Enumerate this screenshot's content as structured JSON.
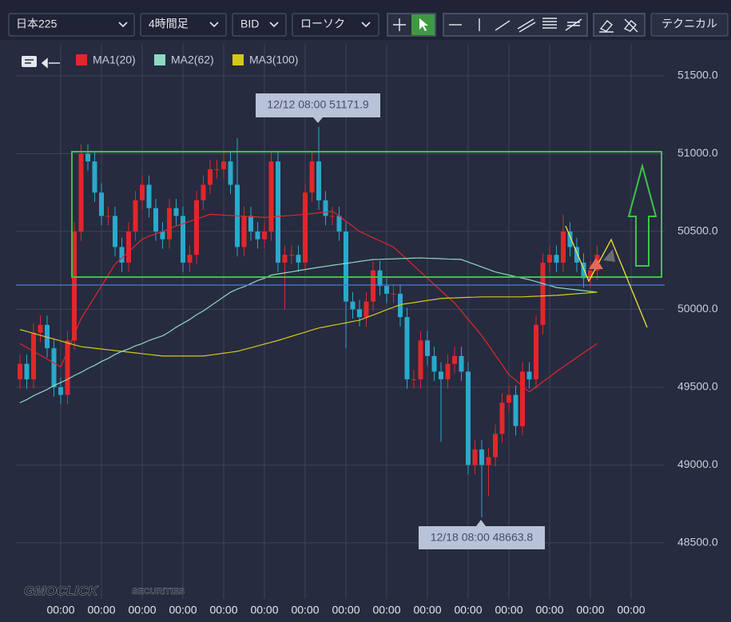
{
  "toolbar": {
    "symbol": "日本225",
    "timeframe": "4時間足",
    "price_type": "BID",
    "chart_style": "ローソク",
    "technical": "テクニカル"
  },
  "chart_data": {
    "type": "candlestick",
    "categories": [
      null,
      null,
      null,
      null,
      null,
      null,
      "00:00",
      null,
      null,
      null,
      null,
      null,
      "00:00",
      null,
      null,
      null,
      null,
      null,
      "00:00",
      null,
      null,
      null,
      null,
      null,
      "00:00",
      null,
      null,
      null,
      null,
      null,
      "00:00",
      null,
      null,
      null,
      null,
      null,
      "00:00",
      null,
      null,
      null,
      null,
      null,
      "00:00",
      null,
      null,
      null,
      null,
      null,
      "00:00",
      null,
      null,
      null,
      null,
      null,
      "00:00",
      null,
      null,
      null,
      null,
      null,
      "00:00",
      null,
      null,
      null,
      null,
      null,
      "00:00",
      null,
      null,
      null,
      null,
      null,
      "00:00",
      null,
      null,
      null,
      null,
      null,
      "00:00",
      null,
      null,
      null,
      null,
      null,
      "00:00",
      null,
      null,
      null,
      null,
      null,
      "00:00"
    ],
    "open": [
      49550,
      49650,
      49550,
      49850,
      49900,
      49750,
      49500,
      49450,
      49800,
      50500,
      51000,
      50950,
      50750,
      50600,
      50600,
      50400,
      50300,
      50500,
      50700,
      50800,
      50650,
      50500,
      50450,
      50650,
      50600,
      50300,
      50350,
      50700,
      50800,
      50900,
      50900,
      50950,
      50800,
      50400,
      50600,
      50500,
      50450,
      50500,
      50950,
      50300,
      50350,
      50350,
      50300,
      50750,
      50950,
      50700,
      50600,
      50600,
      50500,
      50050,
      50000,
      49950,
      50050,
      50250,
      50150,
      50100,
      50100,
      49950,
      49550,
      49550,
      49800,
      49700,
      49600,
      49550,
      49650,
      49700,
      49600,
      49000,
      49100,
      49000,
      49050,
      49200,
      49400,
      49450,
      49250,
      49600,
      49550,
      49900,
      50300,
      50350,
      50300,
      50500,
      50400,
      50300,
      50200,
      50250,
      null,
      null,
      null,
      null,
      null
    ],
    "high": [
      49710,
      49710,
      49910,
      49960,
      49960,
      49810,
      49560,
      49860,
      50560,
      51060,
      51060,
      51010,
      50810,
      50660,
      50660,
      50460,
      50560,
      50760,
      50860,
      50860,
      50710,
      50560,
      50710,
      50710,
      50660,
      50410,
      50760,
      50860,
      50960,
      50960,
      51010,
      51010,
      51100,
      50660,
      50660,
      50560,
      50560,
      51010,
      51010,
      50410,
      50410,
      50410,
      50810,
      51010,
      51171.9,
      50760,
      50660,
      50660,
      50560,
      50110,
      50060,
      50110,
      50310,
      50310,
      50210,
      50160,
      50160,
      50010,
      49610,
      49860,
      49860,
      49760,
      49660,
      49710,
      49760,
      49760,
      49660,
      49160,
      49160,
      49110,
      49260,
      49460,
      49510,
      49510,
      49660,
      49660,
      49960,
      50360,
      50410,
      50410,
      50610,
      50560,
      50460,
      50360,
      50310,
      50410,
      null,
      null,
      null,
      null,
      null
    ],
    "low": [
      49490,
      49490,
      49490,
      49790,
      49690,
      49440,
      49390,
      49390,
      49740,
      50440,
      50890,
      50690,
      50540,
      50540,
      50340,
      50240,
      50240,
      50440,
      50640,
      50590,
      50440,
      50390,
      50390,
      50540,
      50240,
      50240,
      50290,
      50640,
      50740,
      50840,
      50840,
      50740,
      50340,
      50340,
      50440,
      50390,
      50390,
      50440,
      50240,
      50000,
      50290,
      50240,
      50240,
      50690,
      50640,
      50540,
      50540,
      50440,
      49750,
      49940,
      49890,
      49890,
      49990,
      50090,
      50040,
      50040,
      49890,
      49490,
      49490,
      49490,
      49640,
      49540,
      49150,
      49490,
      49590,
      49540,
      48940,
      48940,
      48663.8,
      48800,
      48990,
      49140,
      49340,
      49190,
      49190,
      49490,
      49490,
      49840,
      50240,
      50240,
      50240,
      50340,
      50240,
      50140,
      50140,
      50190,
      null,
      null,
      null,
      null,
      null
    ],
    "close": [
      49650,
      49550,
      49850,
      49900,
      49750,
      49500,
      49450,
      49800,
      50500,
      51000,
      50950,
      50750,
      50600,
      50600,
      50400,
      50300,
      50500,
      50700,
      50800,
      50650,
      50500,
      50450,
      50650,
      50600,
      50300,
      50350,
      50700,
      50800,
      50900,
      50900,
      50950,
      50800,
      50400,
      50600,
      50500,
      50450,
      50500,
      50950,
      50300,
      50350,
      50350,
      50300,
      50750,
      50950,
      50700,
      50600,
      50600,
      50500,
      50050,
      50000,
      49950,
      50050,
      50250,
      50150,
      50100,
      50100,
      49950,
      49550,
      49550,
      49800,
      49700,
      49600,
      49550,
      49650,
      49700,
      49600,
      49000,
      49100,
      49000,
      49050,
      49200,
      49400,
      49450,
      49250,
      49600,
      49550,
      49900,
      50300,
      50350,
      50300,
      50500,
      50400,
      50300,
      50200,
      50250,
      50350,
      null,
      null,
      null,
      null,
      null
    ],
    "up_color": "#e3262b",
    "down_color": "#2aa9cc",
    "series": [
      {
        "name": "MA1(20)",
        "color": "#e3262b",
        "values": [
          49780,
          49755,
          49730,
          49705,
          49680,
          49655,
          49630,
          49730,
          49840,
          49940,
          50010,
          50080,
          50150,
          50220,
          50290,
          50330,
          50370,
          50410,
          50450,
          50470,
          50485,
          50500,
          50520,
          50535,
          50550,
          50565,
          50580,
          50595,
          50610,
          50608,
          50605,
          50603,
          50600,
          50598,
          50595,
          50593,
          50590,
          50593,
          50597,
          50600,
          50603,
          50607,
          50610,
          50615,
          50620,
          50625,
          50630,
          50600,
          50565,
          50535,
          50500,
          50480,
          50460,
          50440,
          50420,
          50400,
          50360,
          50320,
          50280,
          50240,
          50200,
          50160,
          50120,
          50080,
          50040,
          49990,
          49935,
          49885,
          49830,
          49770,
          49705,
          49645,
          49580,
          49545,
          49505,
          49470,
          49500,
          49535,
          49565,
          49600,
          49630,
          49660,
          49690,
          49720,
          49750,
          49780,
          null,
          null,
          null,
          null,
          null
        ]
      },
      {
        "name": "MA2(62)",
        "color": "#8fd8c0",
        "values": [
          49400,
          49420,
          49445,
          49465,
          49485,
          49510,
          49530,
          49550,
          49575,
          49595,
          49620,
          49640,
          49665,
          49685,
          49710,
          49730,
          49745,
          49765,
          49780,
          49800,
          49815,
          49830,
          49855,
          49885,
          49910,
          49935,
          49965,
          49990,
          50020,
          50050,
          50080,
          50110,
          50130,
          50145,
          50165,
          50185,
          50200,
          50220,
          50227,
          50234,
          50241,
          50249,
          50256,
          50263,
          50270,
          50276,
          50283,
          50289,
          50295,
          50301,
          50308,
          50314,
          50320,
          50321,
          50323,
          50324,
          50326,
          50327,
          50329,
          50330,
          50328,
          50327,
          50325,
          50323,
          50322,
          50320,
          50304,
          50288,
          50272,
          50256,
          50240,
          50230,
          50220,
          50210,
          50200,
          50190,
          50178,
          50165,
          50153,
          50140,
          50135,
          50130,
          50125,
          50120,
          50115,
          50110,
          null,
          null,
          null,
          null,
          null
        ]
      },
      {
        "name": "MA3(100)",
        "color": "#d4c81c",
        "values": [
          49870,
          49858,
          49845,
          49833,
          49821,
          49809,
          49797,
          49784,
          49772,
          49760,
          49755,
          49750,
          49745,
          49740,
          49735,
          49730,
          49725,
          49720,
          49715,
          49710,
          49705,
          49700,
          49700,
          49700,
          49700,
          49700,
          49700,
          49700,
          49706,
          49712,
          49718,
          49724,
          49730,
          49742,
          49753,
          49765,
          49777,
          49788,
          49800,
          49813,
          49827,
          49840,
          49853,
          49867,
          49880,
          49888,
          49897,
          49905,
          49913,
          49922,
          49930,
          49947,
          49963,
          49980,
          49997,
          50013,
          50030,
          50037,
          50043,
          50050,
          50057,
          50063,
          50070,
          50072,
          50073,
          50075,
          50077,
          50078,
          50080,
          50080,
          50080,
          50080,
          50080,
          50080,
          50080,
          50082,
          50084,
          50086,
          50088,
          50090,
          50093,
          50097,
          50100,
          50103,
          50107,
          50110,
          null,
          null,
          null,
          null,
          null
        ]
      }
    ],
    "ylim": [
      48140,
      51705
    ],
    "yticks": [
      {
        "value": 48500,
        "label": "48500.0"
      },
      {
        "value": 49000,
        "label": "49000.0"
      },
      {
        "value": 49500,
        "label": "49500.0"
      },
      {
        "value": 50000,
        "label": "50000.0"
      },
      {
        "value": 50500,
        "label": "50500.0"
      },
      {
        "value": 51000,
        "label": "51000.0"
      },
      {
        "value": 51500,
        "label": "51500.0"
      }
    ],
    "grid": true,
    "annotations": [
      "12/12 08:00 51171.9",
      "12/18 08:00 48663.8"
    ],
    "logo": [
      "GMOCLICK",
      "SECURITIES"
    ]
  }
}
